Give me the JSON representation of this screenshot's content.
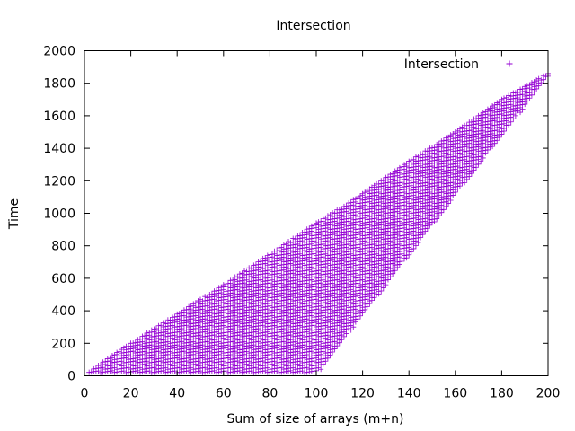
{
  "chart_data": {
    "type": "scatter",
    "title": "Intersection",
    "xlabel": "Sum of size of arrays (m+n)",
    "ylabel": "Time",
    "xlim": [
      0,
      200
    ],
    "ylim": [
      0,
      2000
    ],
    "xticks": [
      "0",
      "20",
      "40",
      "60",
      "80",
      "100",
      "120",
      "140",
      "160",
      "180",
      "200"
    ],
    "yticks": [
      "0",
      "200",
      "400",
      "600",
      "800",
      "1000",
      "1200",
      "1400",
      "1600",
      "1800",
      "2000"
    ],
    "grid": false,
    "legend": {
      "position": "top-right",
      "entries": [
        "Intersection"
      ]
    },
    "series": [
      {
        "name": "Intersection",
        "color": "#9400d3",
        "marker": "plus",
        "envelope": {
          "upper": [
            [
              2,
              30
            ],
            [
              20,
              200
            ],
            [
              40,
              380
            ],
            [
              60,
              560
            ],
            [
              80,
              750
            ],
            [
              100,
              940
            ],
            [
              120,
              1120
            ],
            [
              140,
              1320
            ],
            [
              160,
              1500
            ],
            [
              180,
              1700
            ],
            [
              200,
              1860
            ]
          ],
          "lower": [
            [
              2,
              20
            ],
            [
              100,
              20
            ],
            [
              102,
              40
            ],
            [
              200,
              1840
            ]
          ]
        },
        "x_step": 1,
        "y_step": 20
      }
    ],
    "colors": {
      "points": "#9400d3",
      "axes": "#000000",
      "background": "#ffffff"
    }
  }
}
